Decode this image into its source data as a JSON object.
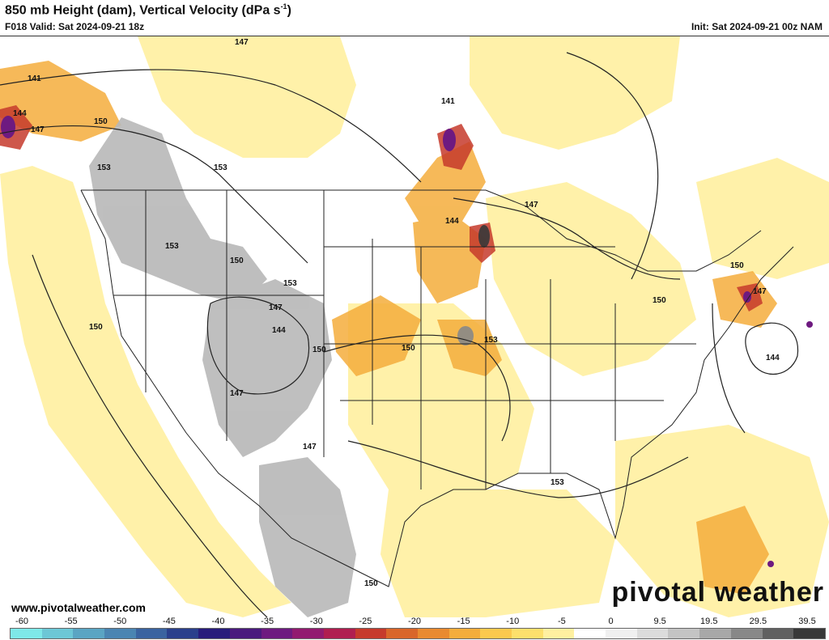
{
  "header": {
    "title_main": "850 mb Height (dam), Vertical Velocity (dPa s",
    "title_sup": "-1",
    "title_end": ")",
    "valid": "F018 Valid: Sat 2024-09-21 18z",
    "init": "Init: Sat 2024-09-21 00z NAM"
  },
  "height_labels": [
    "141",
    "144",
    "147",
    "150",
    "153",
    "147",
    "150",
    "153",
    "153",
    "150",
    "153",
    "147",
    "144",
    "147",
    "150",
    "150",
    "147",
    "141",
    "144",
    "147",
    "153",
    "150",
    "150",
    "147",
    "144",
    "153",
    "150"
  ],
  "watermark": {
    "url": "www.pivotalweather.com",
    "logo": "pivotal weather"
  },
  "colorbar": {
    "ticks": [
      "-60",
      "-55",
      "-50",
      "-45",
      "-40",
      "-35",
      "-30",
      "-25",
      "-20",
      "-15",
      "-10",
      "-5",
      "0",
      "9.5",
      "19.5",
      "29.5",
      "39.5"
    ],
    "colors": [
      "#7ee8e8",
      "#6cc7d6",
      "#5aa5c3",
      "#4a85b2",
      "#3a63a0",
      "#2a3f8c",
      "#281c7c",
      "#4a1a7e",
      "#6e1a80",
      "#921a70",
      "#b01e50",
      "#c63a2c",
      "#d9662a",
      "#e98a30",
      "#f4ad3c",
      "#fbc94e",
      "#fde06c",
      "#fff0a0",
      "#ffffff",
      "#f0f0f0",
      "#dcdcdc",
      "#c4c4c4",
      "#a8a8a8",
      "#888888",
      "#606060",
      "#383838"
    ]
  }
}
